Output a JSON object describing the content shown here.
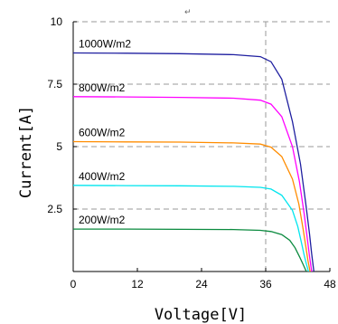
{
  "chart_data": {
    "type": "line",
    "title": "",
    "xlabel": "Voltage[V]",
    "ylabel": "Current[A]",
    "xlim": [
      0,
      48
    ],
    "ylim": [
      0,
      10
    ],
    "xticks": [
      "0",
      "12",
      "24",
      "36",
      "48"
    ],
    "yticks": [
      "2.5",
      "5",
      "7.5",
      "10"
    ],
    "grid": "horizontal-dashed",
    "annotation": "↵",
    "series": [
      {
        "name": "1000W/m2",
        "color": "#1f1fa0",
        "x": [
          0,
          10,
          20,
          30,
          35,
          37,
          39,
          41,
          42.5,
          43.5,
          44.2,
          44.6,
          45.0
        ],
        "y": [
          8.75,
          8.74,
          8.72,
          8.68,
          8.6,
          8.4,
          7.7,
          6.0,
          4.3,
          2.7,
          1.5,
          0.7,
          0.0
        ]
      },
      {
        "name": "800W/m2",
        "color": "#ff00ff",
        "x": [
          0,
          10,
          20,
          30,
          35,
          37,
          39,
          41,
          42.3,
          43.2,
          43.8,
          44.2,
          44.6
        ],
        "y": [
          7.0,
          6.99,
          6.97,
          6.94,
          6.86,
          6.7,
          6.2,
          5.0,
          3.6,
          2.3,
          1.3,
          0.6,
          0.0
        ]
      },
      {
        "name": "600W/m2",
        "color": "#ff8c00",
        "x": [
          0,
          10,
          20,
          30,
          35,
          37,
          39,
          41,
          42.2,
          43.0,
          43.5,
          43.9,
          44.3
        ],
        "y": [
          5.2,
          5.19,
          5.18,
          5.15,
          5.1,
          4.98,
          4.6,
          3.7,
          2.7,
          1.7,
          1.0,
          0.45,
          0.0
        ]
      },
      {
        "name": "400W/m2",
        "color": "#00e5ee",
        "x": [
          0,
          10,
          20,
          30,
          35,
          37,
          39,
          41,
          42.0,
          42.7,
          43.2,
          43.6,
          44.0
        ],
        "y": [
          3.45,
          3.44,
          3.43,
          3.41,
          3.37,
          3.3,
          3.05,
          2.45,
          1.8,
          1.15,
          0.65,
          0.3,
          0.0
        ]
      },
      {
        "name": "200W/m2",
        "color": "#0a8a3e",
        "x": [
          0,
          10,
          20,
          30,
          35,
          37,
          39,
          40.5,
          41.5,
          42.3,
          42.9,
          43.3,
          43.6
        ],
        "y": [
          1.7,
          1.7,
          1.69,
          1.68,
          1.65,
          1.6,
          1.48,
          1.25,
          0.95,
          0.6,
          0.33,
          0.14,
          0.0
        ]
      }
    ]
  }
}
